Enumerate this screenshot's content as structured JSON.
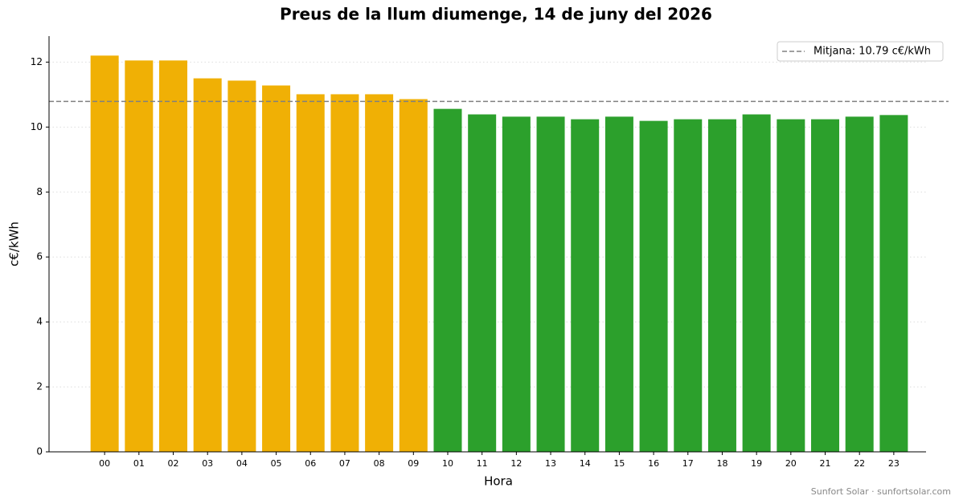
{
  "chart_data": {
    "type": "bar",
    "title": "Preus de la llum diumenge, 14 de juny del 2026",
    "x_label": "Hora",
    "y_label": "c€/kWh",
    "categories": [
      "00",
      "01",
      "02",
      "03",
      "04",
      "05",
      "06",
      "07",
      "08",
      "09",
      "10",
      "11",
      "12",
      "13",
      "14",
      "15",
      "16",
      "17",
      "18",
      "19",
      "20",
      "21",
      "22",
      "23"
    ],
    "values": [
      12.2,
      12.05,
      12.05,
      11.5,
      11.43,
      11.28,
      11.01,
      11.01,
      11.01,
      10.86,
      10.56,
      10.39,
      10.32,
      10.32,
      10.24,
      10.32,
      10.19,
      10.24,
      10.24,
      10.39,
      10.24,
      10.24,
      10.32,
      10.37
    ],
    "colors": [
      "#f0b005",
      "#f0b005",
      "#f0b005",
      "#f0b005",
      "#f0b005",
      "#f0b005",
      "#f0b005",
      "#f0b005",
      "#f0b005",
      "#f0b005",
      "#2ca02c",
      "#2ca02c",
      "#2ca02c",
      "#2ca02c",
      "#2ca02c",
      "#2ca02c",
      "#2ca02c",
      "#2ca02c",
      "#2ca02c",
      "#2ca02c",
      "#2ca02c",
      "#2ca02c",
      "#2ca02c",
      "#2ca02c"
    ],
    "average": {
      "value": 10.79,
      "label": "Mitjana: 10.79 c€/kWh",
      "color": "#808080"
    },
    "ylim": [
      0,
      12.8
    ],
    "yticks": [
      0,
      2,
      4,
      6,
      8,
      10,
      12
    ],
    "grid": true,
    "legend": "upper right",
    "footer": "Sunfort Solar · sunfortsolar.com"
  }
}
